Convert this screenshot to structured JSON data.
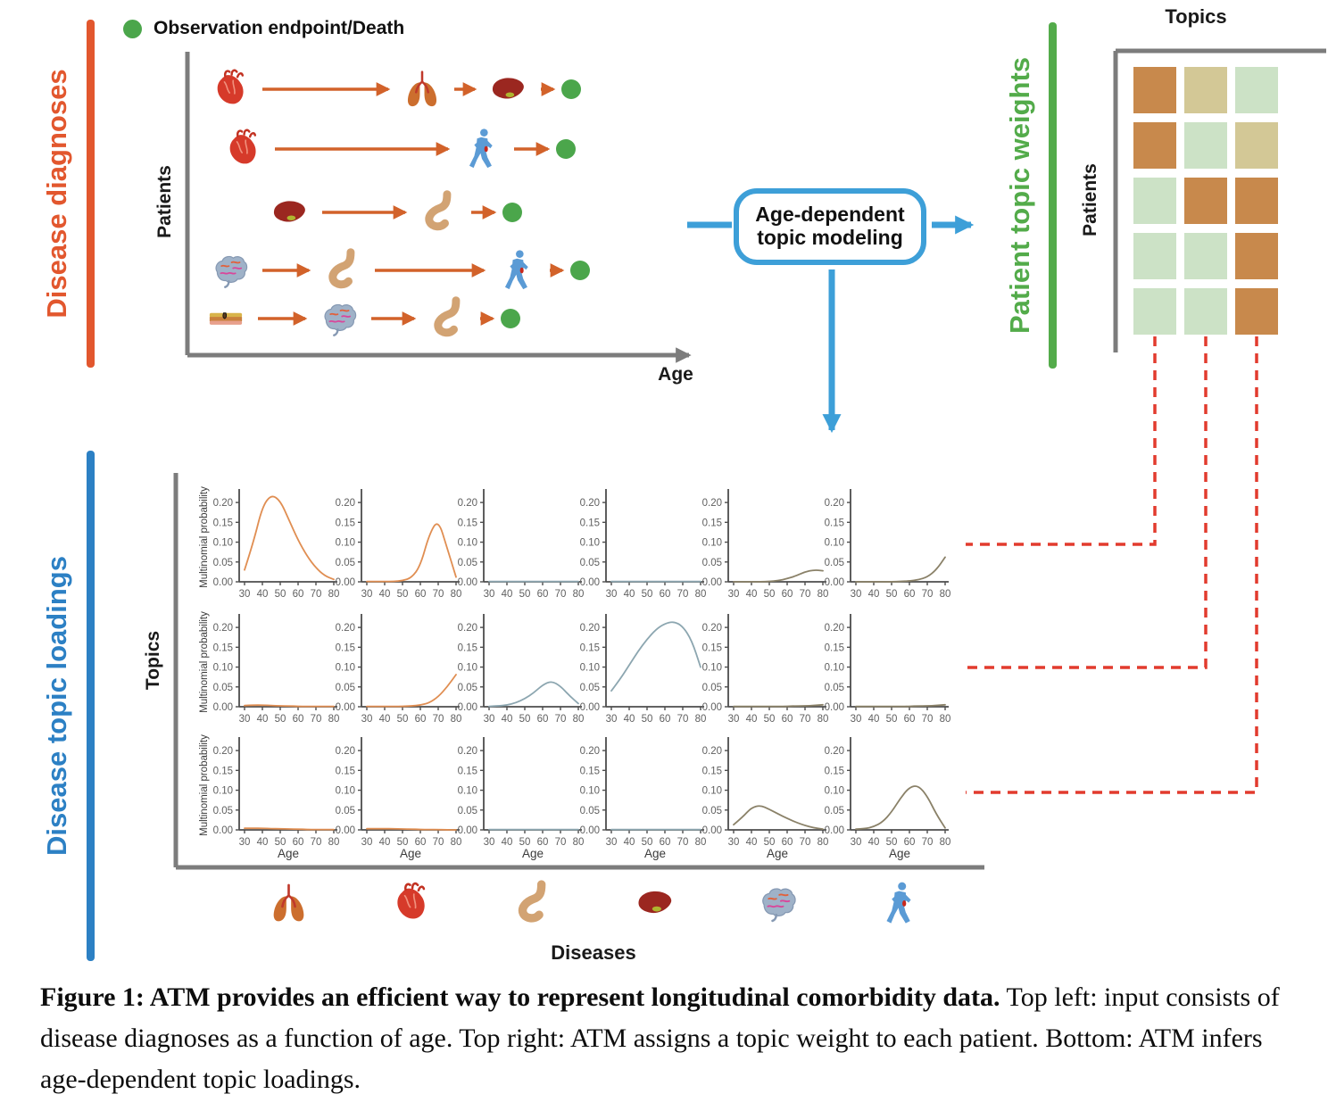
{
  "figure": {
    "legend_label": "Observation endpoint/Death",
    "top_left": {
      "section_label": "Disease diagnoses",
      "y_axis_label": "Patients",
      "x_axis_label": "Age",
      "patient_rows": [
        {
          "sequence": [
            "heart",
            "lungs",
            "liver"
          ]
        },
        {
          "sequence": [
            "heart",
            "person"
          ]
        },
        {
          "sequence": [
            "liver",
            "stomach"
          ]
        },
        {
          "sequence": [
            "brain",
            "stomach",
            "person"
          ]
        },
        {
          "sequence": [
            "tissue",
            "brain",
            "stomach"
          ]
        }
      ]
    },
    "process_box": {
      "label": "Age-dependent topic modeling"
    },
    "top_right": {
      "section_label": "Patient topic weights",
      "x_axis_label": "Topics",
      "y_axis_label": "Patients",
      "cell_palette": {
        "orange": "#C8894C",
        "khaki": "#D3C896",
        "green": "#CCE2C6"
      },
      "cells": [
        [
          "orange",
          "khaki",
          "green"
        ],
        [
          "orange",
          "green",
          "khaki"
        ],
        [
          "green",
          "orange",
          "orange"
        ],
        [
          "green",
          "green",
          "orange"
        ],
        [
          "green",
          "green",
          "orange"
        ]
      ]
    },
    "bottom": {
      "section_label": "Disease topic loadings",
      "y_axis_label": "Topics",
      "x_axis_label": "Diseases",
      "disease_icons": [
        "lungs",
        "heart",
        "stomach",
        "liver",
        "brain",
        "person"
      ]
    },
    "caption_bold": "Figure 1: ATM provides an efficient way to represent longitudinal comorbidity data.",
    "caption_rest": " Top left: input consists of disease diagnoses as a function of age. Top right: ATM assigns a topic weight to each patient. Bottom: ATM infers age-dependent topic loadings."
  },
  "chart_data": {
    "type": "line",
    "layout": "3 topic rows x 6 disease columns of subplots",
    "x": [
      30,
      35,
      40,
      45,
      50,
      55,
      60,
      65,
      70,
      75,
      80
    ],
    "xticks": [
      30,
      40,
      50,
      60,
      70,
      80
    ],
    "yticks": [
      0.0,
      0.05,
      0.1,
      0.15,
      0.2
    ],
    "ylim": [
      0,
      0.225
    ],
    "xlabel": "Age",
    "ylabel": "Multinomial probability",
    "grid": false,
    "colors": {
      "orange": "#E08E52",
      "teal": "#8CA6B0",
      "olive": "#8A8168"
    },
    "column_colors": [
      "orange",
      "orange",
      "teal",
      "teal",
      "olive",
      "olive"
    ],
    "column_diseases": [
      "lungs",
      "heart",
      "stomach",
      "liver",
      "brain",
      "person"
    ],
    "subplots": [
      [
        [
          0.03,
          0.1,
          0.19,
          0.22,
          0.205,
          0.155,
          0.105,
          0.065,
          0.035,
          0.015,
          0.006
        ],
        [
          0.001,
          0.001,
          0.001,
          0.001,
          0.003,
          0.01,
          0.04,
          0.12,
          0.158,
          0.085,
          0.012
        ],
        [
          0.001,
          0.001,
          0.001,
          0.001,
          0.001,
          0.001,
          0.001,
          0.001,
          0.001,
          0.001,
          0.001
        ],
        [
          0.001,
          0.001,
          0.001,
          0.001,
          0.001,
          0.001,
          0.001,
          0.001,
          0.001,
          0.001,
          0.001
        ],
        [
          0.0,
          0.0,
          0.0,
          0.0,
          0.001,
          0.003,
          0.008,
          0.015,
          0.025,
          0.03,
          0.028
        ],
        [
          0.0,
          0.0,
          0.0,
          0.0,
          0.0,
          0.001,
          0.002,
          0.005,
          0.012,
          0.03,
          0.062
        ]
      ],
      [
        [
          0.003,
          0.004,
          0.004,
          0.003,
          0.002,
          0.002,
          0.001,
          0.001,
          0.001,
          0.001,
          0.001
        ],
        [
          0.001,
          0.001,
          0.001,
          0.001,
          0.001,
          0.002,
          0.004,
          0.01,
          0.025,
          0.05,
          0.081
        ],
        [
          0.001,
          0.002,
          0.004,
          0.01,
          0.02,
          0.035,
          0.055,
          0.065,
          0.052,
          0.028,
          0.008
        ],
        [
          0.04,
          0.07,
          0.105,
          0.14,
          0.17,
          0.195,
          0.21,
          0.215,
          0.203,
          0.168,
          0.1
        ],
        [
          0.001,
          0.001,
          0.001,
          0.001,
          0.001,
          0.001,
          0.001,
          0.002,
          0.002,
          0.003,
          0.005
        ],
        [
          0.001,
          0.001,
          0.001,
          0.001,
          0.001,
          0.001,
          0.001,
          0.002,
          0.002,
          0.003,
          0.005
        ]
      ],
      [
        [
          0.004,
          0.004,
          0.004,
          0.003,
          0.003,
          0.002,
          0.002,
          0.001,
          0.001,
          0.001,
          0.001
        ],
        [
          0.003,
          0.003,
          0.003,
          0.003,
          0.002,
          0.002,
          0.001,
          0.001,
          0.001,
          0.0,
          0.0
        ],
        [
          0.001,
          0.001,
          0.001,
          0.001,
          0.001,
          0.001,
          0.001,
          0.001,
          0.001,
          0.001,
          0.001
        ],
        [
          0.001,
          0.001,
          0.001,
          0.001,
          0.001,
          0.001,
          0.001,
          0.001,
          0.001,
          0.001,
          0.001
        ],
        [
          0.013,
          0.032,
          0.056,
          0.062,
          0.052,
          0.04,
          0.029,
          0.019,
          0.011,
          0.005,
          0.002
        ],
        [
          0.002,
          0.003,
          0.008,
          0.02,
          0.045,
          0.08,
          0.108,
          0.112,
          0.085,
          0.04,
          0.005
        ]
      ]
    ]
  }
}
